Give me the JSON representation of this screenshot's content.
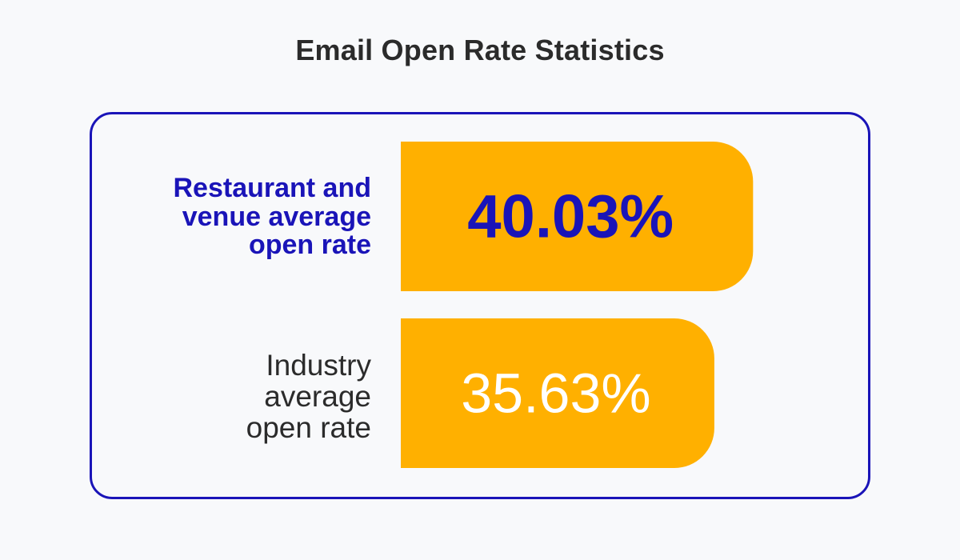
{
  "chart_data": {
    "type": "bar",
    "orientation": "horizontal",
    "title": "Email Open Rate Statistics",
    "categories": [
      "Restaurant and venue average open rate",
      "Industry average open rate"
    ],
    "category_lines": [
      [
        "Restaurant and",
        "venue average",
        "open rate"
      ],
      [
        "Industry",
        "average",
        "open rate"
      ]
    ],
    "values": [
      40.03,
      35.63
    ],
    "value_labels": [
      "40.03%",
      "35.63%"
    ],
    "unit": "%",
    "grid": false,
    "legend": "none",
    "colors": {
      "bar": "#ffb000",
      "frame": "#1a14b8",
      "highlight_text": "#1a14b8",
      "normal_text": "#2b2b2b",
      "value_text_highlight": "#1a14b8",
      "value_text_normal": "#ffffff"
    }
  }
}
